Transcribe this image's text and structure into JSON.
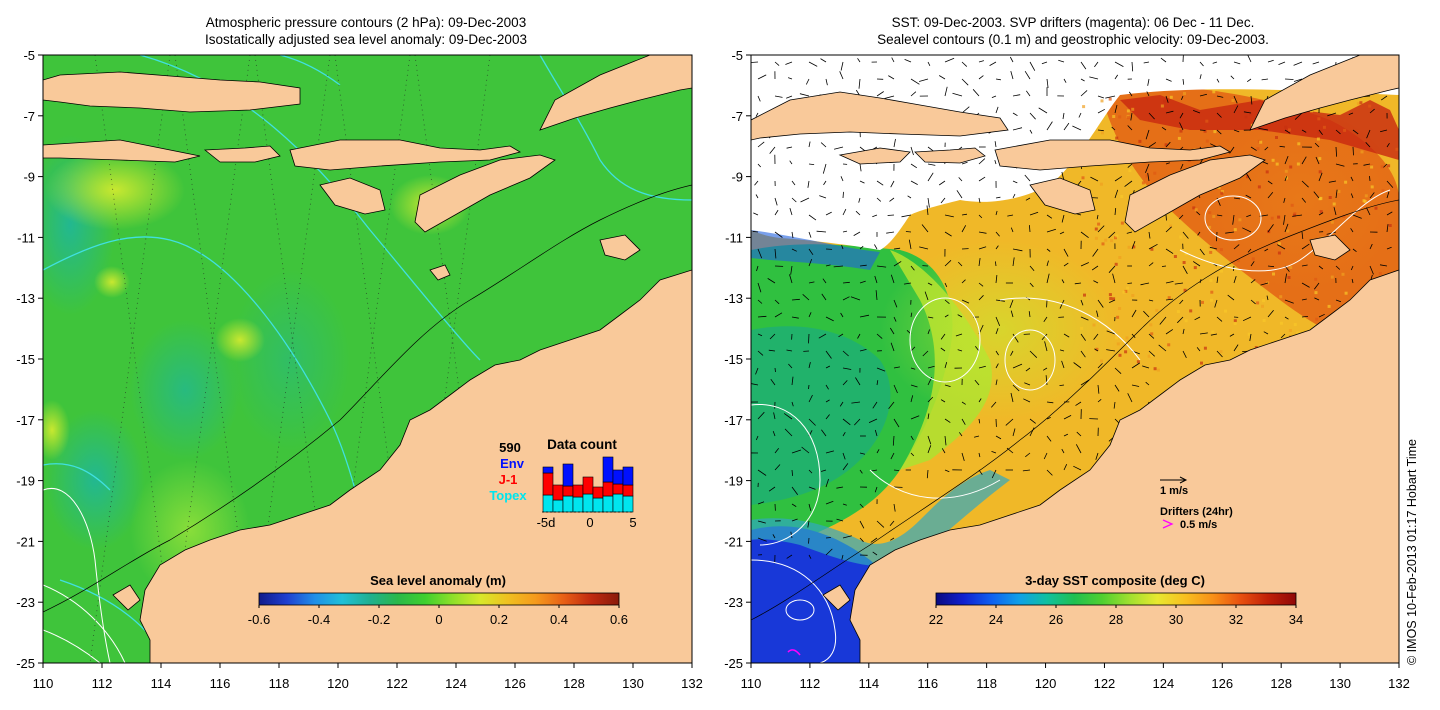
{
  "left_panel": {
    "title_line1": "Atmospheric pressure contours (2 hPa): 09-Dec-2003",
    "title_line2": "Isostatically adjusted sea level anomaly: 09-Dec-2003",
    "x_ticks": [
      "110",
      "112",
      "114",
      "116",
      "118",
      "120",
      "122",
      "124",
      "126",
      "128",
      "130",
      "132"
    ],
    "y_ticks": [
      "-5",
      "-7",
      "-9",
      "-11",
      "-13",
      "-15",
      "-17",
      "-19",
      "-21",
      "-23",
      "-25"
    ],
    "colorbar": {
      "label": "Sea level anomaly (m)",
      "ticks": [
        "-0.6",
        "-0.4",
        "-0.2",
        "0",
        "0.2",
        "0.4",
        "0.6"
      ],
      "colors": [
        "#101a8a",
        "#1f3fd0",
        "#1f8ee8",
        "#1fc0d8",
        "#1fb090",
        "#2ab84a",
        "#3fd02e",
        "#8ee02a",
        "#d8e82a",
        "#f0c020",
        "#f59a1c",
        "#e86016",
        "#c02a10",
        "#8a1a0a"
      ]
    },
    "data_count": {
      "title": "Data count",
      "total": "590",
      "legend": [
        {
          "label": "Env",
          "color": "#0010ff"
        },
        {
          "label": "J-1",
          "color": "#ff0000"
        },
        {
          "label": "Topex",
          "color": "#00e5ee"
        }
      ],
      "axis_labels": [
        "-5d",
        "0",
        "5"
      ]
    }
  },
  "right_panel": {
    "title_line1": "SST: 09-Dec-2003. SVP drifters (magenta): 06 Dec - 11 Dec.",
    "title_line2": "Sealevel contours (0.1 m) and geostrophic velocity: 09-Dec-2003.",
    "x_ticks": [
      "110",
      "112",
      "114",
      "116",
      "118",
      "120",
      "122",
      "124",
      "126",
      "128",
      "130",
      "132"
    ],
    "y_ticks": [
      "-5",
      "-7",
      "-9",
      "-11",
      "-13",
      "-15",
      "-17",
      "-19",
      "-21",
      "-23",
      "-25"
    ],
    "velocity_scale_label": "1 m/s",
    "drifters_label": "Drifters (24hr)",
    "drifter_scale_label": "0.5 m/s",
    "drifter_color": "#ff00ff",
    "colorbar": {
      "label": "3-day SST composite (deg C)",
      "ticks": [
        "22",
        "24",
        "26",
        "28",
        "30",
        "32",
        "34"
      ],
      "colors": [
        "#0a0a80",
        "#1020d0",
        "#1060f0",
        "#10a0e8",
        "#10c0a0",
        "#20c050",
        "#50d030",
        "#a0e030",
        "#e8e830",
        "#f8c020",
        "#f89018",
        "#e85010",
        "#c02008",
        "#900808"
      ]
    }
  },
  "credit": "© IMOS 10-Feb-2013 01:17 Hobart Time",
  "colors": {
    "land": "#f9c99a",
    "ocean_green": "#3fc43b",
    "contour_cyan": "#40e0e0"
  }
}
